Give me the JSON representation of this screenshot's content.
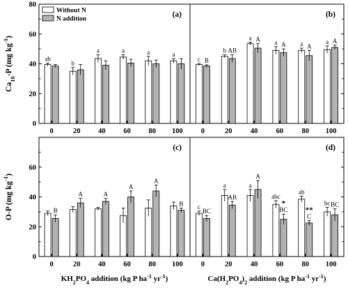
{
  "chart_data": {
    "type": "bar",
    "legend": {
      "placement": "top-left",
      "entries": [
        {
          "name": "Without N",
          "color": "#ffffff"
        },
        {
          "name": "N addition",
          "color": "#b3b3b3"
        }
      ]
    },
    "categories": [
      "0",
      "20",
      "40",
      "60",
      "80",
      "100"
    ],
    "rows": [
      {
        "ylabel": {
          "main": "Ca",
          "sub": "10",
          "rest": "-P (mg kg",
          "sup": "-1",
          "end": ")"
        },
        "ylim": [
          0,
          80
        ],
        "yticks": [
          "0",
          "20",
          "40",
          "60",
          "80"
        ]
      },
      {
        "ylabel": {
          "main": "O-P (mg kg",
          "sup": "-1",
          "end": ")"
        },
        "ylim": [
          0,
          80
        ],
        "yticks": [
          "0",
          "20",
          "40",
          "60"
        ]
      }
    ],
    "xlabels": [
      {
        "parts": [
          [
            "KH",
            "n"
          ],
          [
            "2",
            "sub"
          ],
          [
            "PO",
            "n"
          ],
          [
            "4",
            "sub"
          ],
          [
            " addition (kg P ha",
            "n"
          ],
          [
            "-1",
            "sup"
          ],
          [
            " yr",
            "n"
          ],
          [
            "-1",
            "sup"
          ],
          [
            ")",
            "n"
          ]
        ]
      },
      {
        "parts": [
          [
            "Ca(H",
            "n"
          ],
          [
            "2",
            "sub"
          ],
          [
            "PO",
            "n"
          ],
          [
            "4",
            "sub"
          ],
          [
            ")",
            "n"
          ],
          [
            "2",
            "sub"
          ],
          [
            " addition (kg P ha",
            "n"
          ],
          [
            "-1",
            "sup"
          ],
          [
            " yr",
            "n"
          ],
          [
            "-1",
            "sup"
          ],
          [
            ")",
            "n"
          ]
        ]
      }
    ],
    "panels": [
      {
        "label": "(a)",
        "row": 0,
        "col": 0,
        "series": [
          {
            "name": "Without N",
            "values": [
              39.5,
              35.0,
              43.5,
              44.5,
              42.0,
              42.0
            ],
            "errors": [
              1.0,
              2.5,
              2.5,
              1.5,
              3.0,
              1.5
            ],
            "letters": [
              "ab",
              "b",
              "a",
              "a",
              "a",
              "a"
            ],
            "stars": [
              "",
              "",
              "",
              "",
              "",
              ""
            ]
          },
          {
            "name": "N addition",
            "values": [
              38.5,
              36.0,
              39.0,
              40.5,
              40.0,
              40.0
            ],
            "errors": [
              1.0,
              3.5,
              3.0,
              2.5,
              2.5,
              3.5
            ],
            "letters": [
              "",
              "",
              "",
              "",
              "",
              ""
            ],
            "stars": [
              "",
              "",
              "",
              "",
              "",
              ""
            ]
          }
        ]
      },
      {
        "label": "(b)",
        "row": 0,
        "col": 1,
        "series": [
          {
            "name": "Without N",
            "values": [
              39.5,
              45.0,
              53.5,
              49.0,
              49.0,
              49.5
            ],
            "errors": [
              0.8,
              1.0,
              1.0,
              2.5,
              1.5,
              2.5
            ],
            "letters": [
              "c",
              "b",
              "a",
              "a",
              "a",
              "a"
            ],
            "stars": [
              "",
              "",
              "",
              "",
              "",
              ""
            ]
          },
          {
            "name": "N addition",
            "values": [
              38.5,
              43.5,
              50.5,
              47.5,
              45.5,
              51.0
            ],
            "errors": [
              0.8,
              2.5,
              3.0,
              2.5,
              3.5,
              1.5
            ],
            "letters": [
              "B",
              "AB",
              "A",
              "A",
              "A",
              "A"
            ],
            "stars": [
              "",
              "",
              "",
              "",
              "",
              ""
            ]
          }
        ]
      },
      {
        "label": "(c)",
        "row": 1,
        "col": 0,
        "series": [
          {
            "name": "Without N",
            "values": [
              29.0,
              31.5,
              32.0,
              27.5,
              32.5,
              34.0
            ],
            "errors": [
              1.5,
              2.0,
              1.0,
              5.0,
              5.5,
              2.5
            ],
            "letters": [
              "",
              "",
              "",
              "",
              "",
              ""
            ],
            "stars": [
              "",
              "",
              "",
              "",
              "",
              ""
            ]
          },
          {
            "name": "N addition",
            "values": [
              25.5,
              36.0,
              37.0,
              40.0,
              44.0,
              31.0
            ],
            "errors": [
              2.5,
              3.0,
              2.0,
              4.0,
              4.0,
              1.5
            ],
            "letters": [
              "B",
              "A",
              "A",
              "A",
              "A",
              "B"
            ],
            "stars": [
              "",
              "",
              "",
              "",
              "",
              ""
            ]
          }
        ]
      },
      {
        "label": "(d)",
        "row": 1,
        "col": 1,
        "series": [
          {
            "name": "Without N",
            "values": [
              29.0,
              41.0,
              41.0,
              35.0,
              38.5,
              30.0
            ],
            "errors": [
              1.5,
              4.0,
              4.0,
              2.5,
              2.0,
              3.0
            ],
            "letters": [
              "c",
              "a",
              "a",
              "abc",
              "ab",
              "bc"
            ],
            "stars": [
              "",
              "",
              "",
              "",
              "",
              ""
            ]
          },
          {
            "name": "N addition",
            "values": [
              25.5,
              34.5,
              45.0,
              25.0,
              22.5,
              28.0
            ],
            "errors": [
              2.0,
              2.5,
              6.0,
              3.5,
              1.5,
              4.0
            ],
            "letters": [
              "BC",
              "AB",
              "A",
              "BC",
              "C",
              "BC"
            ],
            "stars": [
              "",
              "",
              "",
              "*",
              "**",
              ""
            ]
          }
        ]
      }
    ]
  }
}
